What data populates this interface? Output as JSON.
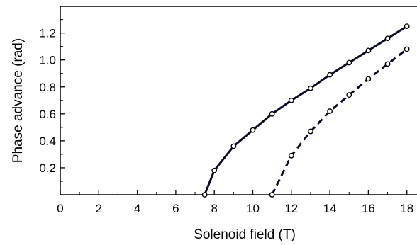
{
  "chart_data": {
    "type": "line",
    "title": "",
    "xlabel": "Solenoid field (T)",
    "ylabel": "Phase advance (rad)",
    "xlim": [
      0,
      19
    ],
    "ylim": [
      0,
      1.4
    ],
    "xticks": [
      "0",
      "2",
      "4",
      "6",
      "8",
      "10",
      "12",
      "14",
      "16",
      "18"
    ],
    "yticks": [
      "0.2",
      "0.4",
      "0.6",
      "0.8",
      "1.0",
      "1.2"
    ],
    "grid": false,
    "legend": "none",
    "series": [
      {
        "style": "solid",
        "color": "#0a0a2a",
        "marker": "open-circle",
        "x": [
          7.5,
          8,
          9,
          10,
          11,
          12,
          13,
          14,
          15,
          16,
          17,
          18
        ],
        "y": [
          0.0,
          0.18,
          0.36,
          0.48,
          0.6,
          0.7,
          0.79,
          0.89,
          0.98,
          1.07,
          1.16,
          1.25
        ]
      },
      {
        "style": "dashed",
        "color": "#0a0a2a",
        "marker": "open-circle",
        "x": [
          11,
          12,
          13,
          14,
          15,
          16,
          17,
          18
        ],
        "y": [
          0.0,
          0.29,
          0.47,
          0.62,
          0.74,
          0.86,
          0.97,
          1.08
        ]
      }
    ]
  }
}
